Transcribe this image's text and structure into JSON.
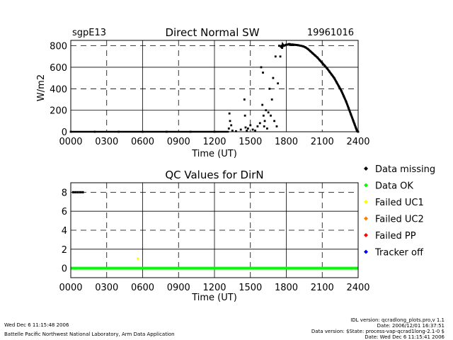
{
  "footer": {
    "left_date": "Wed Dec  6 11:15:48 2006",
    "left_lab": "Battelle Pacific Northwest National Laboratory, Arm Data Application",
    "right_lines": [
      "IDL version: qcradlong_plots.pro,v 1.1",
      "Date: 2006/12/01 16:37:51",
      "Data version: $State: process-vap-qcrad1long-2.1-0 $",
      "Date: Wed Dec  6 11:15:41 2006"
    ]
  },
  "legend": {
    "items": [
      {
        "label": "Data missing",
        "color": "#000000"
      },
      {
        "label": "Data OK",
        "color": "#00ff00"
      },
      {
        "label": "Failed UC1",
        "color": "#ffff00"
      },
      {
        "label": "Failed UC2",
        "color": "#ff8000"
      },
      {
        "label": "Failed PP",
        "color": "#ff0000"
      },
      {
        "label": "Tracker off",
        "color": "#0000ff"
      }
    ]
  },
  "chart_data": [
    {
      "type": "scatter",
      "site": "sgpE13",
      "title": "Direct Normal SW",
      "date": "19961016",
      "xlabel": "Time (UT)",
      "ylabel": "W/m2",
      "xlim": [
        0,
        2400
      ],
      "ylim": [
        0,
        850
      ],
      "x_ticks": [
        "0000",
        "0300",
        "0600",
        "0900",
        "1200",
        "1500",
        "1800",
        "2100",
        "2400"
      ],
      "y_ticks": [
        "0",
        "200",
        "400",
        "600",
        "800"
      ],
      "series": [
        {
          "name": "Direct Normal SW",
          "color": "#000000",
          "x": [
            0,
            200,
            400,
            600,
            800,
            1000,
            1200,
            1320,
            1325,
            1330,
            1340,
            1350,
            1380,
            1420,
            1450,
            1455,
            1460,
            1470,
            1480,
            1500,
            1520,
            1540,
            1560,
            1580,
            1590,
            1600,
            1605,
            1610,
            1615,
            1620,
            1630,
            1640,
            1650,
            1660,
            1670,
            1680,
            1690,
            1700,
            1710,
            1720,
            1730,
            1740,
            1750,
            1755,
            1760,
            1765,
            1770,
            1775,
            1780,
            1790,
            1800,
            1810,
            1820,
            1830,
            1840,
            1850,
            1860,
            1880,
            1900,
            1920,
            1940,
            1960,
            1980,
            2000,
            2020,
            2040,
            2060,
            2080,
            2100,
            2120,
            2140,
            2160,
            2180,
            2200,
            2220,
            2240,
            2260,
            2280,
            2300,
            2320,
            2340,
            2360,
            2370,
            2380,
            2385,
            2390,
            2395,
            2400
          ],
          "values": [
            0,
            0,
            0,
            0,
            0,
            0,
            0,
            30,
            170,
            100,
            60,
            10,
            5,
            20,
            300,
            150,
            40,
            10,
            30,
            60,
            20,
            10,
            50,
            80,
            600,
            250,
            550,
            150,
            50,
            100,
            200,
            30,
            180,
            400,
            150,
            300,
            500,
            100,
            700,
            50,
            450,
            800,
            700,
            790,
            800,
            780,
            810,
            800,
            800,
            805,
            810,
            810,
            815,
            815,
            810,
            812,
            810,
            808,
            805,
            800,
            795,
            785,
            770,
            750,
            730,
            710,
            690,
            665,
            640,
            615,
            590,
            560,
            530,
            500,
            460,
            420,
            380,
            330,
            280,
            220,
            160,
            100,
            70,
            40,
            25,
            10,
            3,
            0
          ]
        }
      ]
    },
    {
      "type": "scatter",
      "title": "QC Values for DirN",
      "xlabel": "Time (UT)",
      "ylabel": "",
      "xlim": [
        0,
        2400
      ],
      "ylim": [
        -1,
        9
      ],
      "x_ticks": [
        "0000",
        "0300",
        "0600",
        "0900",
        "1200",
        "1500",
        "1800",
        "2100",
        "2400"
      ],
      "y_ticks": [
        "0",
        "2",
        "4",
        "6",
        "8"
      ],
      "series": [
        {
          "name": "Data missing",
          "color": "#000000",
          "x": [
            20,
            40,
            60,
            80,
            100
          ],
          "values": [
            8,
            8,
            8,
            8,
            8
          ]
        },
        {
          "name": "Data OK",
          "color": "#00ff00",
          "x": [
            0,
            2400
          ],
          "values": [
            0,
            0
          ]
        },
        {
          "name": "Failed UC1",
          "color": "#ffff00",
          "x": [
            560
          ],
          "values": [
            1
          ]
        }
      ]
    }
  ]
}
